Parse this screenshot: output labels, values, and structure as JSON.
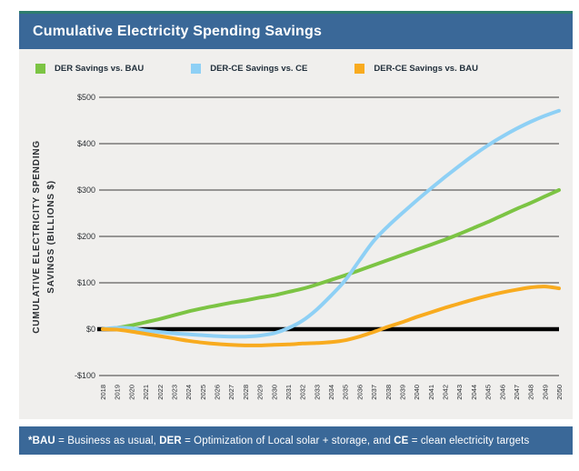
{
  "header": {
    "title": "Cumulative Electricity Spending Savings"
  },
  "legend": {
    "items": [
      {
        "label": "DER Savings vs. BAU",
        "color": "#7cc444"
      },
      {
        "label": "DER-CE Savings vs. CE",
        "color": "#8ed0f5"
      },
      {
        "label": "DER-CE Savings vs. BAU",
        "color": "#f8ab1f"
      }
    ]
  },
  "chart_data": {
    "type": "line",
    "title": "Cumulative Electricity Spending Savings",
    "ylabel": "CUMULATIVE ELECTRICITY SPENDING\nSAVINGS (BILLIONS $)",
    "xlabel": "",
    "ylim": [
      -100,
      500
    ],
    "grid": true,
    "legend_position": "top",
    "ytick_values": [
      500,
      400,
      300,
      200,
      100,
      0,
      -100
    ],
    "ytick_labels": [
      "$500",
      "$400",
      "$300",
      "$200",
      "$100",
      "$0",
      "-$100"
    ],
    "x": [
      2018,
      2019,
      2020,
      2021,
      2022,
      2023,
      2024,
      2025,
      2026,
      2027,
      2028,
      2029,
      2030,
      2031,
      2032,
      2033,
      2034,
      2035,
      2036,
      2037,
      2038,
      2039,
      2040,
      2041,
      2042,
      2043,
      2044,
      2045,
      2046,
      2047,
      2048,
      2049,
      2050
    ],
    "series": [
      {
        "name": "DER Savings vs. BAU",
        "color": "#7cc444",
        "values": [
          0,
          3,
          8,
          15,
          22,
          30,
          38,
          45,
          51,
          57,
          62,
          68,
          73,
          80,
          87,
          96,
          106,
          116,
          127,
          138,
          149,
          160,
          171,
          182,
          193,
          205,
          218,
          231,
          245,
          259,
          272,
          286,
          300
        ]
      },
      {
        "name": "DER-CE Savings vs. CE",
        "color": "#8ed0f5",
        "values": [
          0,
          3,
          2,
          -3,
          -6,
          -9,
          -11,
          -13,
          -15,
          -16,
          -16,
          -14,
          -9,
          2,
          18,
          42,
          72,
          105,
          148,
          190,
          222,
          250,
          277,
          303,
          328,
          352,
          375,
          396,
          415,
          432,
          447,
          460,
          471
        ]
      },
      {
        "name": "DER-CE Savings vs. BAU",
        "color": "#f8ab1f",
        "values": [
          0,
          -1,
          -5,
          -10,
          -15,
          -20,
          -25,
          -29,
          -32,
          -34,
          -35,
          -35,
          -34,
          -33,
          -31,
          -30,
          -28,
          -24,
          -16,
          -6,
          5,
          15,
          26,
          36,
          46,
          55,
          64,
          72,
          79,
          85,
          90,
          92,
          88
        ]
      }
    ],
    "zero_line_color": "#000000"
  },
  "footer": {
    "segments": [
      {
        "text": "*BAU",
        "bold": true
      },
      {
        "text": " = Business as usual, ",
        "bold": false
      },
      {
        "text": "DER",
        "bold": true
      },
      {
        "text": " = Optimization of Local solar + storage, and ",
        "bold": false
      },
      {
        "text": "CE",
        "bold": true
      },
      {
        "text": " = clean electricity targets",
        "bold": false
      }
    ]
  },
  "colors": {
    "header_bg": "#3a6898",
    "accent_teal": "#2e7d6e",
    "panel_bg": "#f0efed",
    "grid": "#5f5f5f",
    "text": "#22303c"
  }
}
